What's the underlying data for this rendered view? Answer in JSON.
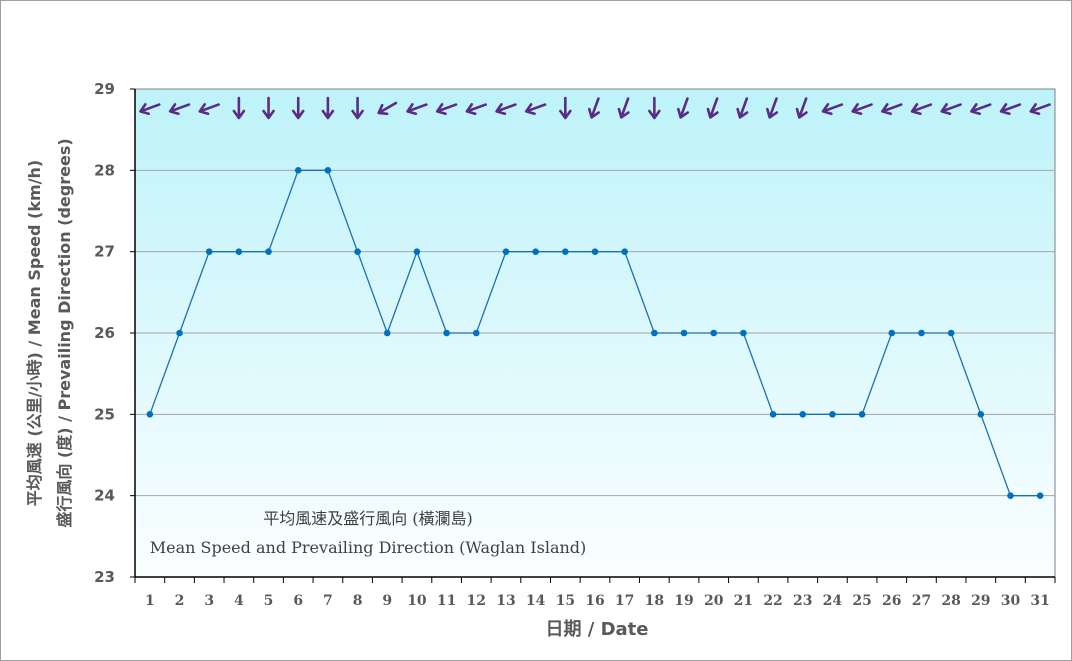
{
  "chart_data": {
    "type": "line",
    "title": "平均風速及盛行風向 (橫瀾島)",
    "subtitle": "Mean Speed and Prevailing Direction (Waglan Island)",
    "xlabel": "日期 / Date",
    "ylabel_line1": "平均風速 (公里/小時) / Mean Speed (km/h)",
    "ylabel_line2": "盛行風向 (度) / Prevailing Direction (degrees)",
    "ylim": [
      23,
      29
    ],
    "yticks": [
      23,
      24,
      25,
      26,
      27,
      28,
      29
    ],
    "grid": true,
    "legend": "none",
    "categories": [
      "1",
      "2",
      "3",
      "4",
      "5",
      "6",
      "7",
      "8",
      "9",
      "10",
      "11",
      "12",
      "13",
      "14",
      "15",
      "16",
      "17",
      "18",
      "19",
      "20",
      "21",
      "22",
      "23",
      "24",
      "25",
      "26",
      "27",
      "28",
      "29",
      "30",
      "31"
    ],
    "series": [
      {
        "name": "Mean Speed (km/h)",
        "color": "#0070c0",
        "values": [
          25,
          26,
          27,
          27,
          27,
          28,
          28,
          27,
          26,
          27,
          26,
          26,
          27,
          27,
          27,
          27,
          27,
          26,
          26,
          26,
          26,
          25,
          25,
          25,
          25,
          26,
          26,
          26,
          25,
          24,
          24
        ]
      },
      {
        "name": "Prevailing Direction (degrees)",
        "color": "#5b2c83",
        "marker": "arrow",
        "values": [
          70,
          70,
          70,
          360,
          360,
          360,
          360,
          360,
          60,
          70,
          70,
          70,
          70,
          70,
          360,
          20,
          20,
          360,
          20,
          20,
          20,
          20,
          20,
          70,
          70,
          70,
          70,
          70,
          70,
          70,
          70
        ]
      }
    ]
  },
  "colors": {
    "plot_bg_top": "#bdf3fa",
    "plot_bg_bottom": "#fbfeff",
    "line": "#1f6fae",
    "marker": "#0070c0",
    "arrow": "#5b2c83",
    "grid": "#a6a6a6",
    "axis": "#000000",
    "text": "#595959"
  }
}
